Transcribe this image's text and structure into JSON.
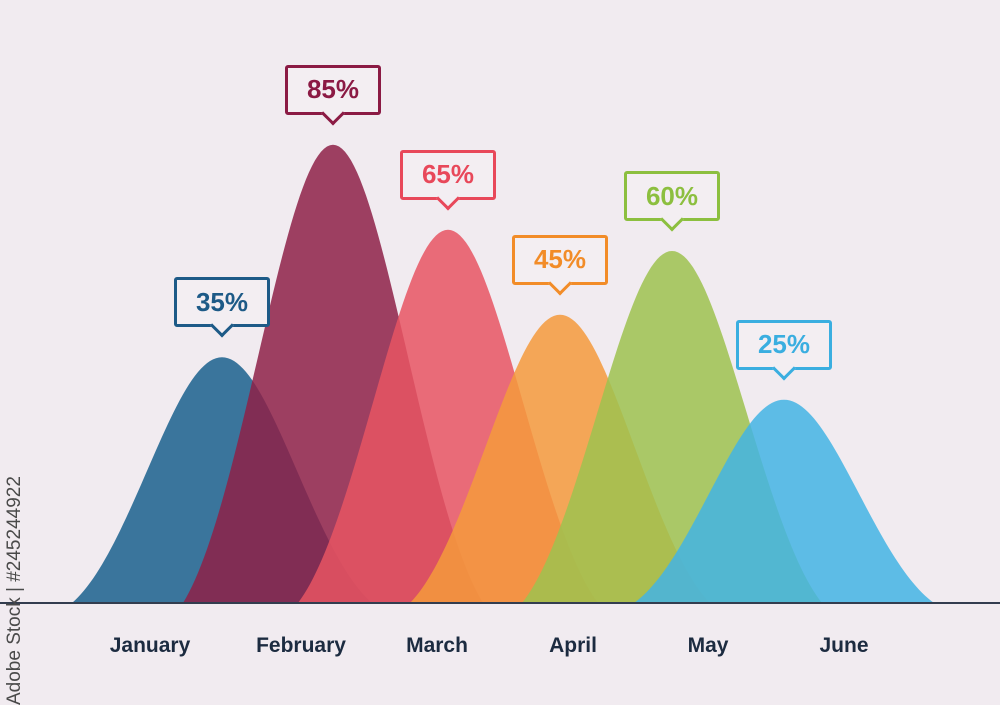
{
  "chart_data": {
    "type": "area",
    "categories": [
      "January",
      "February",
      "March",
      "April",
      "May",
      "June"
    ],
    "values": [
      35,
      85,
      65,
      45,
      60,
      25
    ],
    "data_labels": [
      "35%",
      "85%",
      "65%",
      "45%",
      "60%",
      "25%"
    ],
    "colors": [
      "#2f6f97",
      "#8e2148",
      "#e85563",
      "#f59a3c",
      "#9dc24f",
      "#43b4e4"
    ],
    "label_colors": [
      "#1d5a87",
      "#8b1a44",
      "#e8485a",
      "#f28c28",
      "#8cbf3f",
      "#3aaee0"
    ],
    "title": "",
    "xlabel": "",
    "ylabel": "",
    "grid": false,
    "legend": "none"
  },
  "watermark": "Adobe Stock | #245244922"
}
